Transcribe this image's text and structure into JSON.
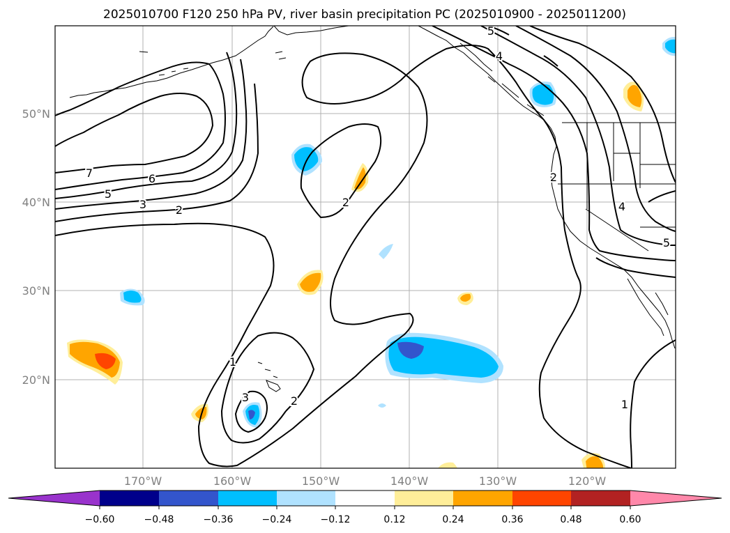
{
  "title": "2025010700 F120 250 hPa PV, river basin precipitation PC (2025010900 - 2025011200)",
  "map": {
    "lon_labels": [
      "170°W",
      "160°W",
      "150°W",
      "140°W",
      "130°W",
      "120°W"
    ],
    "lat_labels": [
      "50°N",
      "40°N",
      "30°N",
      "20°N"
    ],
    "contour_labels": [
      "7",
      "6",
      "5",
      "3",
      "2",
      "2",
      "1",
      "3",
      "2",
      "5",
      "4",
      "2",
      "4",
      "5",
      "1"
    ],
    "gridlines": true,
    "colors": {
      "coast": "#000000",
      "grid": "#b0b0b0",
      "contour": "#000000"
    }
  },
  "colorbar": {
    "tick_labels": [
      "−0.60",
      "−0.48",
      "−0.36",
      "−0.24",
      "−0.12",
      "0.12",
      "0.24",
      "0.36",
      "0.48",
      "0.60"
    ],
    "colors": [
      "#9933cc",
      "#00008b",
      "#3355cc",
      "#00bfff",
      "#b0e2ff",
      "#ffffff",
      "#ffee99",
      "#ffa500",
      "#ff4500",
      "#b22222",
      "#ff88aa"
    ]
  }
}
